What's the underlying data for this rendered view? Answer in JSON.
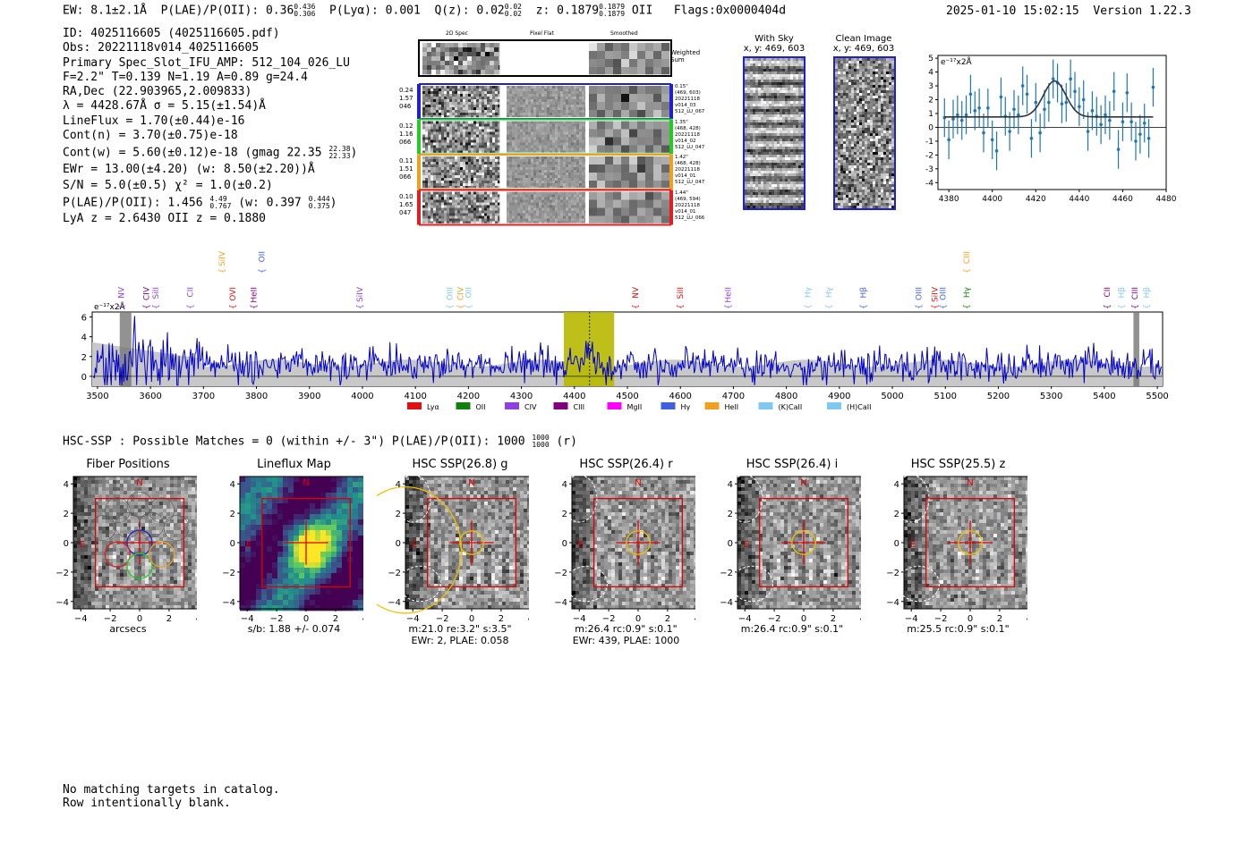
{
  "header": {
    "ew": "EW: 8.1±2.1Å",
    "plae_label": "P(LAE)/P(OII): 0.36",
    "plae_hi": "0.436",
    "plae_lo": "0.306",
    "plya": "P(Lyα): 0.001",
    "qz_label": "Q(z): 0.02",
    "qz_hi": "0.02",
    "qz_lo": "0.02",
    "z_label": "z: 0.1879",
    "z_hi": "0.1879",
    "z_lo": "0.1879",
    "z_line": "OII",
    "flags": "Flags:0x0000404d",
    "timestamp": "2025-01-10 15:02:15",
    "version": "Version 1.22.3"
  },
  "info": {
    "lines": [
      "ID: 4025116605 (4025116605.pdf)",
      "Obs: 20221118v014_4025116605",
      "Primary Spec_Slot_IFU_AMP: 512_104_026_LU",
      "F=2.2\"  T=0.139  N=1.19  A=0.89  g=24.4",
      "RA,Dec (22.903965,2.009833)",
      "λ = 4428.67Å   σ = 5.15(±1.54)Å",
      "LineFlux = 1.70(±0.44)e-16",
      "Cont(n) = 3.70(±0.75)e-18"
    ],
    "contw": "Cont(w) = 5.60(±0.12)e-18 (gmag 22.35",
    "contw_hi": "22.38",
    "contw_lo": "22.33",
    "ewr": "EWr = 13.00(±4.20) (w: 8.50(±2.20))Å",
    "sn": "S/N = 5.0(±0.5)   χ² = 1.0(±0.2)",
    "plae2": "P(LAE)/P(OII): 1.456",
    "plae2_hi": "4.49",
    "plae2_lo": "0.767",
    "plae2_w": "(w: 0.397",
    "plae2_w_hi": "0.444",
    "plae2_w_lo": "0.375",
    "lya": "LyA z = 2.6430   OII z = 0.1880"
  },
  "cutouts": {
    "col_headers": [
      "2D Spec",
      "Pixel Flat",
      "Smoothed"
    ],
    "weighted_sum": "Weighted\nSum",
    "rows": [
      {
        "left": [
          "0.24",
          "1.57",
          "046"
        ],
        "right": [
          "0.15\"",
          "(469, 603)",
          "20221118",
          "v014_03",
          "512_LU_067"
        ],
        "color": "#1f1fd0"
      },
      {
        "left": [
          "0.12",
          "1.16",
          "066"
        ],
        "right": [
          "1.35\"",
          "(468, 428)",
          "20221118",
          "v014_02",
          "512_LU_047"
        ],
        "color": "#22cc22"
      },
      {
        "left": [
          "0.11",
          "1.51",
          "066"
        ],
        "right": [
          "1.42\"",
          "(468, 428)",
          "20221118",
          "v014_01",
          "512_LU_047"
        ],
        "color": "#f0a020"
      },
      {
        "left": [
          "0.10",
          "1.65",
          "047"
        ],
        "right": [
          "1.44\"",
          "(469, 594)",
          "20221118",
          "v014_01",
          "512_LU_066"
        ],
        "color": "#e02020"
      }
    ],
    "with_sky_title": "With Sky",
    "with_sky_xy": "x, y: 469, 603",
    "clean_title": "Clean Image",
    "clean_xy": "x, y: 469, 603"
  },
  "colors": {
    "spectrum": "#0000cc",
    "fit": "#333333",
    "points": "#1f77b4",
    "highlight": "#b8b800",
    "red": "#dd0000"
  },
  "chart_data": [
    {
      "type": "scatter",
      "title": "",
      "ylabel": "e⁻¹⁷x2Å",
      "xlim": [
        4375,
        4480
      ],
      "ylim": [
        -4.5,
        5.2
      ],
      "xticks": [
        4380,
        4400,
        4420,
        4440,
        4460,
        4480
      ],
      "yticks": [
        -4,
        -3,
        -2,
        -1,
        0,
        1,
        2,
        3,
        4,
        5
      ],
      "x": [
        4378,
        4380,
        4382,
        4384,
        4386,
        4388,
        4390,
        4392,
        4394,
        4396,
        4398,
        4400,
        4402,
        4404,
        4406,
        4408,
        4410,
        4412,
        4414,
        4416,
        4418,
        4420,
        4422,
        4424,
        4426,
        4428,
        4430,
        4432,
        4434,
        4436,
        4438,
        4440,
        4442,
        4444,
        4446,
        4448,
        4450,
        4452,
        4454,
        4456,
        4458,
        4460,
        4462,
        4464,
        4466,
        4468,
        4470,
        4472,
        4474
      ],
      "y": [
        0.7,
        -0.9,
        0.6,
        0.9,
        0.5,
        0.9,
        2.4,
        1.2,
        1.4,
        -0.4,
        1.4,
        -0.9,
        -1.7,
        2.2,
        0.8,
        -0.3,
        1.3,
        0.9,
        3.0,
        2.4,
        -0.8,
        1.8,
        -0.4,
        1.3,
        1.8,
        3.5,
        3.2,
        1.7,
        1.8,
        3.5,
        2.6,
        1.5,
        2.0,
        -0.3,
        1.2,
        0.8,
        0.2,
        0.9,
        0.5,
        2.6,
        -1.6,
        0.4,
        2.5,
        0.4,
        -1.0,
        -0.5,
        0.3,
        -0.8,
        2.9
      ],
      "yerr": 1.4,
      "fit": {
        "center": 4428.67,
        "sigma": 5.15,
        "amp": 2.6,
        "continuum": 0.75
      }
    },
    {
      "type": "line",
      "ylabel": "e⁻¹⁷x2Å",
      "xlim": [
        3490,
        5510
      ],
      "ylim": [
        -1,
        6.5
      ],
      "xticks": [
        3500,
        3600,
        3700,
        3800,
        3900,
        4000,
        4100,
        4200,
        4300,
        4400,
        4500,
        4600,
        4700,
        4800,
        4900,
        5000,
        5100,
        5200,
        5300,
        5400,
        5500
      ],
      "yticks": [
        0,
        2,
        4,
        6
      ],
      "highlight_band": [
        4380,
        4475
      ],
      "line_center": 4428.67,
      "masked_regions": [
        [
          3542,
          3564
        ],
        [
          5455,
          5466
        ]
      ],
      "noise_level": 1.2,
      "legend": [
        {
          "label": "Lyα",
          "color": "#e01010"
        },
        {
          "label": "OII",
          "color": "#108010"
        },
        {
          "label": "CIV",
          "color": "#9040e0"
        },
        {
          "label": "CIII",
          "color": "#800080"
        },
        {
          "label": "MgII",
          "color": "#ff00ff"
        },
        {
          "label": "Hγ",
          "color": "#4060e0"
        },
        {
          "label": "HeII",
          "color": "#f0a020"
        },
        {
          "label": "(K)CaII",
          "color": "#80c8f0"
        },
        {
          "label": "(H)CaII",
          "color": "#80c8f0"
        }
      ],
      "line_labels": [
        {
          "x": 3545,
          "label": "NV",
          "color": "#9040e0",
          "row": 1
        },
        {
          "x": 3592,
          "label": "CIV",
          "color": "#800080",
          "row": 1
        },
        {
          "x": 3610,
          "label": "SiII",
          "color": "#9040e0",
          "row": 1
        },
        {
          "x": 3675,
          "label": "CII",
          "color": "#9040e0",
          "row": 1
        },
        {
          "x": 3755,
          "label": "OVI",
          "color": "#e01010",
          "row": 1
        },
        {
          "x": 3795,
          "label": "HeII",
          "color": "#800080",
          "row": 1
        },
        {
          "x": 3735,
          "label": "SiIV",
          "color": "#f0a020",
          "row": 0
        },
        {
          "x": 3810,
          "label": "OII",
          "color": "#4060e0",
          "row": 0
        },
        {
          "x": 3995,
          "label": "SiIV",
          "color": "#9040e0",
          "row": 1
        },
        {
          "x": 4165,
          "label": "OIII",
          "color": "#80c8f0",
          "row": 1
        },
        {
          "x": 4185,
          "label": "CIV",
          "color": "#f0a020",
          "row": 1
        },
        {
          "x": 4200,
          "label": "OII",
          "color": "#80c8f0",
          "row": 1
        },
        {
          "x": 4515,
          "label": "NV",
          "color": "#e01010",
          "row": 1
        },
        {
          "x": 4600,
          "label": "SiII",
          "color": "#e01010",
          "row": 1
        },
        {
          "x": 4690,
          "label": "HeII",
          "color": "#9040e0",
          "row": 1
        },
        {
          "x": 4840,
          "label": "Hγ",
          "color": "#80c8f0",
          "row": 1
        },
        {
          "x": 4880,
          "label": "Hγ",
          "color": "#80c8f0",
          "row": 1
        },
        {
          "x": 4945,
          "label": "Hβ",
          "color": "#4060e0",
          "row": 1
        },
        {
          "x": 5050,
          "label": "OIII",
          "color": "#4060e0",
          "row": 1
        },
        {
          "x": 5080,
          "label": "SiIV",
          "color": "#e01010",
          "row": 1
        },
        {
          "x": 5095,
          "label": "OIII",
          "color": "#4060e0",
          "row": 1
        },
        {
          "x": 5140,
          "label": "Hγ",
          "color": "#108010",
          "row": 1
        },
        {
          "x": 5140,
          "label": "CIII",
          "color": "#f0a020",
          "row": 0
        },
        {
          "x": 5405,
          "label": "CII",
          "color": "#800080",
          "row": 1
        },
        {
          "x": 5432,
          "label": "Hβ",
          "color": "#80c8f0",
          "row": 1
        },
        {
          "x": 5458,
          "label": "CIII",
          "color": "#800080",
          "row": 1
        },
        {
          "x": 5480,
          "label": "Hβ",
          "color": "#80c8f0",
          "row": 1
        }
      ]
    }
  ],
  "hsc": {
    "title": "HSC-SSP : Possible Matches = 0 (within +/- 3\")  P(LAE)/P(OII): 1000",
    "title_hi": "1000",
    "title_lo": "1000",
    "title_suffix": "(r)",
    "panels": [
      {
        "title": "Fiber Positions",
        "captions": [
          "arcsecs"
        ]
      },
      {
        "title": "Lineflux Map",
        "captions": [
          "s/b: 1.88 +/- 0.074"
        ]
      },
      {
        "title": "HSC SSP(26.8) g",
        "captions": [
          "m:21.0  re:3.2\"  s:3.5\"",
          "EWr: 2, PLAE: 0.058"
        ]
      },
      {
        "title": "HSC SSP(26.4) r",
        "captions": [
          "m:26.4 rc:0.9\"  s:0.1\"",
          "EWr: 439, PLAE: 1000"
        ]
      },
      {
        "title": "HSC SSP(26.4) i",
        "captions": [
          "m:26.4 rc:0.9\"  s:0.1\""
        ]
      },
      {
        "title": "HSC SSP(25.5) z",
        "captions": [
          "m:25.5 rc:0.9\"  s:0.1\""
        ]
      }
    ],
    "axis_ticks": [
      "-4",
      "-2",
      "0",
      "2",
      "4"
    ],
    "north_label": "N",
    "east_label": "E"
  },
  "footer": {
    "line1": "No matching targets in catalog.",
    "line2": "Row intentionally blank."
  }
}
